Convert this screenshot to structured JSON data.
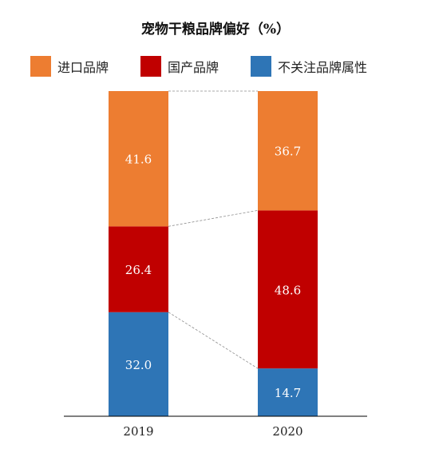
{
  "chart_data": {
    "type": "bar",
    "stacked": true,
    "title": "宠物干粮品牌偏好（%）",
    "categories": [
      "2019",
      "2020"
    ],
    "series": [
      {
        "name": "不关注品牌属性",
        "color": "#2e75b6",
        "values": [
          32.0,
          14.7
        ]
      },
      {
        "name": "国产品牌",
        "color": "#c00000",
        "values": [
          26.4,
          48.6
        ]
      },
      {
        "name": "进口品牌",
        "color": "#ed7d31",
        "values": [
          41.6,
          36.7
        ]
      }
    ],
    "value_labels": [
      [
        "32.0",
        "14.7"
      ],
      [
        "26.4",
        "48.6"
      ],
      [
        "41.6",
        "36.7"
      ]
    ],
    "legend_order": [
      2,
      1,
      0
    ],
    "legend_position": "top",
    "ylim": [
      0,
      100
    ],
    "grid": false,
    "connector_lines": true
  }
}
